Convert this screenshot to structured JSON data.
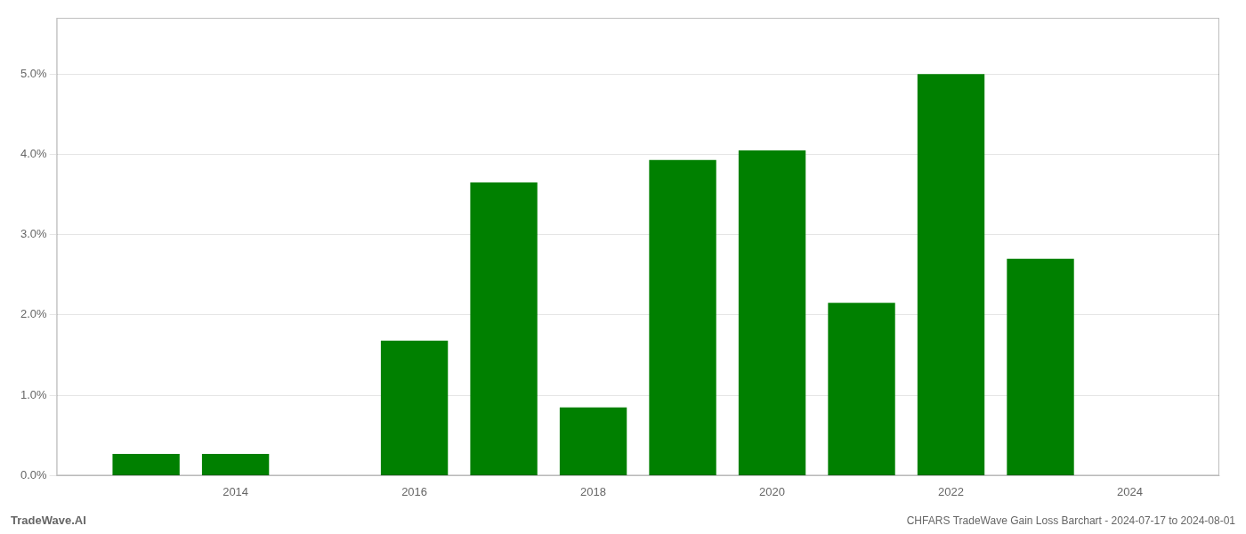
{
  "chart_data": {
    "type": "bar",
    "x": [
      2013,
      2014,
      2016,
      2017,
      2018,
      2019,
      2020,
      2021,
      2022,
      2023
    ],
    "values": [
      0.0027,
      0.0027,
      0.0168,
      0.0365,
      0.0085,
      0.0393,
      0.0405,
      0.0215,
      0.05,
      0.027
    ],
    "color": "#008000",
    "xlim": [
      2012.0,
      2025.0
    ],
    "xticks": [
      2014,
      2016,
      2018,
      2020,
      2022,
      2024
    ],
    "ylim": [
      0,
      0.057
    ],
    "yticks": [
      {
        "value": 0.0,
        "label": "0.0%"
      },
      {
        "value": 0.01,
        "label": "1.0%"
      },
      {
        "value": 0.02,
        "label": "2.0%"
      },
      {
        "value": 0.03,
        "label": "3.0%"
      },
      {
        "value": 0.04,
        "label": "4.0%"
      },
      {
        "value": 0.05,
        "label": "5.0%"
      }
    ],
    "grid": true,
    "annotations": [
      "TradeWave.AI",
      "CHFARS TradeWave Gain Loss Barchart - 2024-07-17 to 2024-08-01"
    ]
  }
}
